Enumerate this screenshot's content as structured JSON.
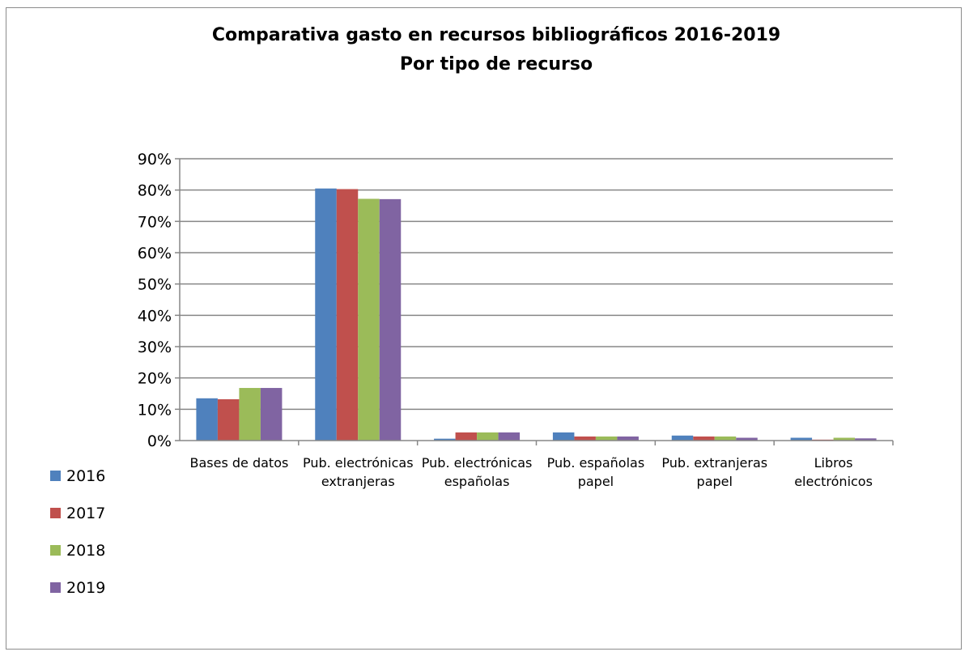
{
  "chart_data": {
    "type": "bar",
    "title_lines": [
      "Comparativa gasto en recursos bibliográficos 2016-2019",
      "Por tipo de recurso"
    ],
    "categories": [
      [
        "Bases de datos"
      ],
      [
        "Pub. electrónicas",
        "extranjeras"
      ],
      [
        "Pub. electrónicas",
        "españolas"
      ],
      [
        "Pub. españolas",
        "papel"
      ],
      [
        "Pub. extranjeras",
        "papel"
      ],
      [
        "Libros",
        "electrónicos"
      ]
    ],
    "series": [
      {
        "name": "2016",
        "color": "#4f81bd",
        "values": [
          13.5,
          80.5,
          0.6,
          2.6,
          1.6,
          0.9
        ]
      },
      {
        "name": "2017",
        "color": "#c0504d",
        "values": [
          13.2,
          80.3,
          2.6,
          1.3,
          1.3,
          0.3
        ]
      },
      {
        "name": "2018",
        "color": "#9bbb59",
        "values": [
          16.8,
          77.2,
          2.6,
          1.3,
          1.3,
          0.9
        ]
      },
      {
        "name": "2019",
        "color": "#8064a2",
        "values": [
          16.8,
          77.1,
          2.6,
          1.3,
          0.9,
          0.7
        ]
      }
    ],
    "ylim": [
      0,
      90
    ],
    "yticks": [
      "0%",
      "10%",
      "20%",
      "30%",
      "40%",
      "50%",
      "60%",
      "70%",
      "80%",
      "90%"
    ],
    "grid": true,
    "legend_position": "left-bottom"
  }
}
